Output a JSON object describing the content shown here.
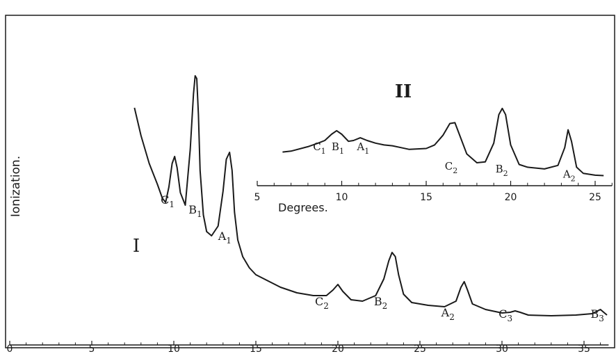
{
  "chart_data": [
    {
      "type": "line",
      "label": "I",
      "ylabel": "Ionization.",
      "xlim": [
        0,
        36.5
      ],
      "x_ticks": [
        0,
        5,
        10,
        15,
        20,
        25,
        30,
        35
      ],
      "x_tick_labels": [
        "0",
        "5",
        "10",
        "15",
        "20",
        "25",
        "30",
        "35"
      ],
      "x": [
        7.6,
        8.0,
        8.5,
        9.0,
        9.3,
        9.5,
        9.7,
        9.9,
        10.05,
        10.2,
        10.4,
        10.7,
        11.0,
        11.2,
        11.3,
        11.4,
        11.5,
        11.6,
        11.8,
        12.0,
        12.3,
        12.7,
        13.0,
        13.2,
        13.4,
        13.55,
        13.7,
        13.9,
        14.2,
        14.6,
        15.0,
        15.5,
        16.0,
        16.5,
        17.5,
        18.5,
        19.3,
        19.7,
        20.0,
        20.3,
        20.8,
        21.5,
        22.3,
        22.8,
        23.1,
        23.3,
        23.5,
        23.7,
        24.0,
        24.5,
        25.5,
        26.5,
        27.2,
        27.5,
        27.7,
        27.9,
        28.2,
        29.0,
        30.0,
        30.5,
        30.8,
        31.1,
        31.6,
        33.0,
        34.5,
        35.5,
        36.0,
        36.4
      ],
      "y": [
        15.5,
        13.5,
        11.5,
        10.0,
        9.0,
        8.7,
        9.8,
        11.5,
        12.0,
        11.2,
        9.4,
        8.5,
        12.5,
        16.5,
        17.8,
        17.6,
        15.0,
        11.0,
        7.8,
        6.6,
        6.3,
        7.0,
        9.5,
        11.8,
        12.3,
        11.0,
        8.0,
        6.0,
        4.8,
        4.0,
        3.5,
        3.2,
        2.9,
        2.6,
        2.2,
        2.0,
        2.0,
        2.4,
        2.8,
        2.3,
        1.7,
        1.6,
        2.0,
        3.2,
        4.5,
        5.1,
        4.8,
        3.5,
        2.1,
        1.5,
        1.3,
        1.2,
        1.6,
        2.6,
        3.0,
        2.4,
        1.4,
        1.0,
        0.75,
        0.8,
        0.9,
        0.8,
        0.6,
        0.55,
        0.6,
        0.7,
        1.0,
        0.6
      ],
      "annotations": [
        {
          "label": "C",
          "sub": "1",
          "x": 9.2,
          "y": 8.6
        },
        {
          "label": "B",
          "sub": "1",
          "x": 10.9,
          "y": 7.9
        },
        {
          "label": "A",
          "sub": "1",
          "x": 12.7,
          "y": 6.0
        },
        {
          "label": "C",
          "sub": "2",
          "x": 18.6,
          "y": 1.3
        },
        {
          "label": "B",
          "sub": "2",
          "x": 22.2,
          "y": 1.3
        },
        {
          "label": "A",
          "sub": "2",
          "x": 26.3,
          "y": 0.5
        },
        {
          "label": "C",
          "sub": "3",
          "x": 29.8,
          "y": 0.4
        },
        {
          "label": "B",
          "sub": "3",
          "x": 35.4,
          "y": 0.4
        }
      ]
    },
    {
      "type": "line",
      "label": "II",
      "xlabel": "Degrees.",
      "xlim": [
        5,
        26
      ],
      "x_ticks": [
        5,
        10,
        15,
        20,
        25
      ],
      "x_tick_labels": [
        "5",
        "10",
        "15",
        "20",
        "25"
      ],
      "x": [
        6.5,
        7.0,
        8.0,
        8.6,
        9.0,
        9.4,
        9.7,
        10.0,
        10.4,
        10.7,
        11.1,
        11.5,
        12.0,
        12.5,
        13.0,
        13.5,
        14.0,
        15.0,
        15.5,
        16.0,
        16.4,
        16.7,
        17.0,
        17.4,
        18.0,
        18.5,
        19.0,
        19.3,
        19.5,
        19.7,
        20.0,
        20.5,
        21.0,
        22.0,
        22.8,
        23.2,
        23.4,
        23.6,
        23.9,
        24.3,
        25.0,
        25.5
      ],
      "y": [
        3.0,
        3.1,
        3.6,
        4.0,
        4.3,
        5.0,
        5.4,
        5.0,
        4.2,
        4.3,
        4.6,
        4.3,
        4.0,
        3.8,
        3.7,
        3.5,
        3.3,
        3.4,
        3.8,
        4.9,
        6.2,
        6.3,
        4.8,
        2.8,
        1.8,
        1.9,
        4.0,
        7.2,
        7.9,
        7.2,
        3.8,
        1.6,
        1.3,
        1.1,
        1.5,
        3.5,
        5.5,
        4.2,
        1.3,
        0.6,
        0.4,
        0.35
      ],
      "annotations": [
        {
          "label": "C",
          "sub": "1",
          "x": 8.3,
          "y": 3.2
        },
        {
          "label": "B",
          "sub": "1",
          "x": 9.4,
          "y": 3.2
        },
        {
          "label": "A",
          "sub": "1",
          "x": 10.9,
          "y": 3.2
        },
        {
          "label": "C",
          "sub": "2",
          "x": 16.1,
          "y": 1.0
        },
        {
          "label": "B",
          "sub": "2",
          "x": 19.1,
          "y": 0.7
        },
        {
          "label": "A",
          "sub": "2",
          "x": 23.1,
          "y": 0.1
        }
      ]
    }
  ]
}
